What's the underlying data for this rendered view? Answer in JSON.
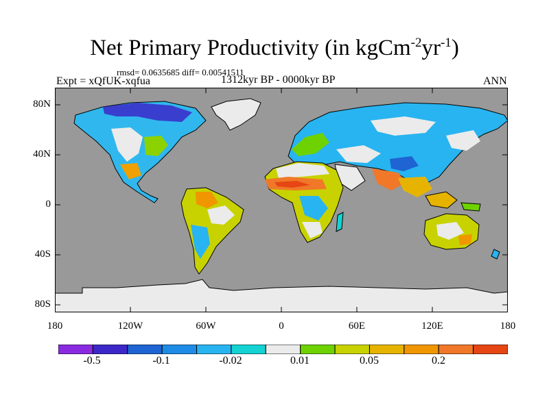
{
  "title": {
    "main": "Net Primary Productivity (in kgCm",
    "exp1": "-2",
    "mid": "yr",
    "exp2": "-1",
    "close": ")"
  },
  "stats_text": "rmsd= 0.0635685  diff= 0.00541511",
  "experiment_text": "Expt = xQfUK-xqfua",
  "period_text": "1312kyr BP - 0000kyr BP",
  "season_text": "ANN",
  "map": {
    "ocean_color": "#999999",
    "lat_ticks": [
      "80N",
      "40N",
      "0",
      "40S",
      "80S"
    ],
    "lon_ticks": [
      "180",
      "120W",
      "60W",
      "0",
      "60E",
      "120E",
      "180"
    ]
  },
  "colorbar": {
    "colors": [
      "#8a2be2",
      "#3c28c8",
      "#1e64d2",
      "#1e8ce6",
      "#28b4f0",
      "#14d2d2",
      "#ebebeb",
      "#6ed200",
      "#c8d200",
      "#e6b400",
      "#f09600",
      "#f07828",
      "#e64614"
    ],
    "labels": [
      "-0.5",
      "-0.1",
      "-0.02",
      "0.01",
      "0.05",
      "0.2"
    ]
  }
}
